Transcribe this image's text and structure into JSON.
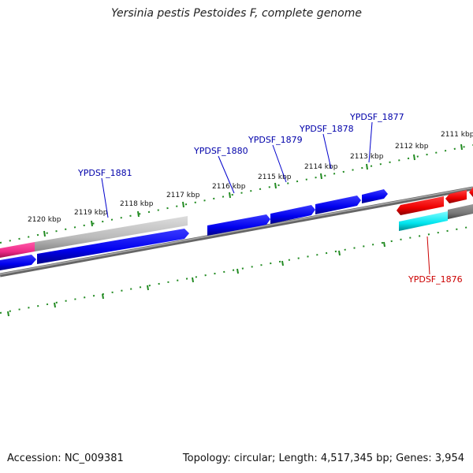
{
  "title": "Yersinia pestis Pestoides F, complete genome",
  "accession": "Accession: NC_009381",
  "topology": "Topology: circular; Length: 4,517,345 bp; Genes: 3,954",
  "colors": {
    "forward_cds": "#0000ee",
    "reverse_cds": "#ee0000",
    "pink_feature": "#ee2a88",
    "cyan_feature": "#00e5ee",
    "gray_feature": "#bbbbbb",
    "backbone": "#888888",
    "ruler_tick": "#228b22",
    "forward_label": "#0000aa",
    "reverse_label": "#cc0000"
  },
  "ruler_labels": [
    "2120 kbp",
    "2119 kbp",
    "2118 kbp",
    "2117 kbp",
    "2116 kbp",
    "2115 kbp",
    "2114 kbp",
    "2113 kbp",
    "2112 kbp",
    "2111 kbp"
  ],
  "genes_forward": [
    "YPDSF_1881",
    "YPDSF_1880",
    "YPDSF_1879",
    "YPDSF_1878",
    "YPDSF_1877"
  ],
  "genes_reverse": [
    "YPDSF_1876"
  ]
}
